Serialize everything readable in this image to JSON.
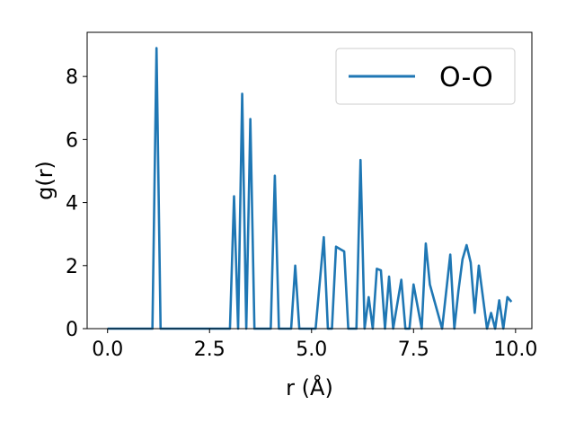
{
  "chart_data": {
    "type": "line",
    "xlabel": "r (Å)",
    "ylabel": "g(r)",
    "xlim": [
      -0.5,
      10.4
    ],
    "ylim": [
      0,
      9.4
    ],
    "xticks": [
      0.0,
      2.5,
      5.0,
      7.5,
      10.0
    ],
    "xtick_labels": [
      "0.0",
      "2.5",
      "5.0",
      "7.5",
      "10.0"
    ],
    "yticks": [
      0,
      2,
      4,
      6,
      8
    ],
    "ytick_labels": [
      "0",
      "2",
      "4",
      "6",
      "8"
    ],
    "grid": false,
    "legend_position": "top-right",
    "series": [
      {
        "name": "O-O",
        "color": "#1f77b4",
        "x": [
          0.0,
          1.1,
          1.2,
          1.3,
          3.0,
          3.1,
          3.2,
          3.3,
          3.4,
          3.5,
          3.6,
          4.0,
          4.1,
          4.2,
          4.5,
          4.6,
          4.7,
          5.1,
          5.3,
          5.4,
          5.5,
          5.6,
          5.8,
          5.9,
          6.1,
          6.2,
          6.3,
          6.4,
          6.5,
          6.6,
          6.7,
          6.8,
          6.9,
          7.0,
          7.2,
          7.3,
          7.4,
          7.5,
          7.7,
          7.8,
          7.9,
          8.2,
          8.4,
          8.5,
          8.6,
          8.7,
          8.8,
          8.9,
          9.0,
          9.1,
          9.3,
          9.4,
          9.5,
          9.6,
          9.7,
          9.8,
          9.9
        ],
        "y": [
          0,
          0,
          8.9,
          0,
          0,
          4.2,
          0,
          7.45,
          0,
          6.65,
          0,
          0,
          4.85,
          0,
          0,
          2.0,
          0,
          0,
          2.9,
          0,
          0,
          2.6,
          2.45,
          0,
          0,
          5.35,
          0,
          1.0,
          0,
          1.9,
          1.85,
          0,
          1.65,
          0,
          1.55,
          0,
          0,
          1.4,
          0,
          2.7,
          1.4,
          0,
          2.35,
          0,
          1.2,
          2.2,
          2.65,
          2.1,
          0.5,
          2.0,
          0,
          0.5,
          0,
          0.9,
          0,
          1.0,
          0.85
        ]
      }
    ]
  }
}
